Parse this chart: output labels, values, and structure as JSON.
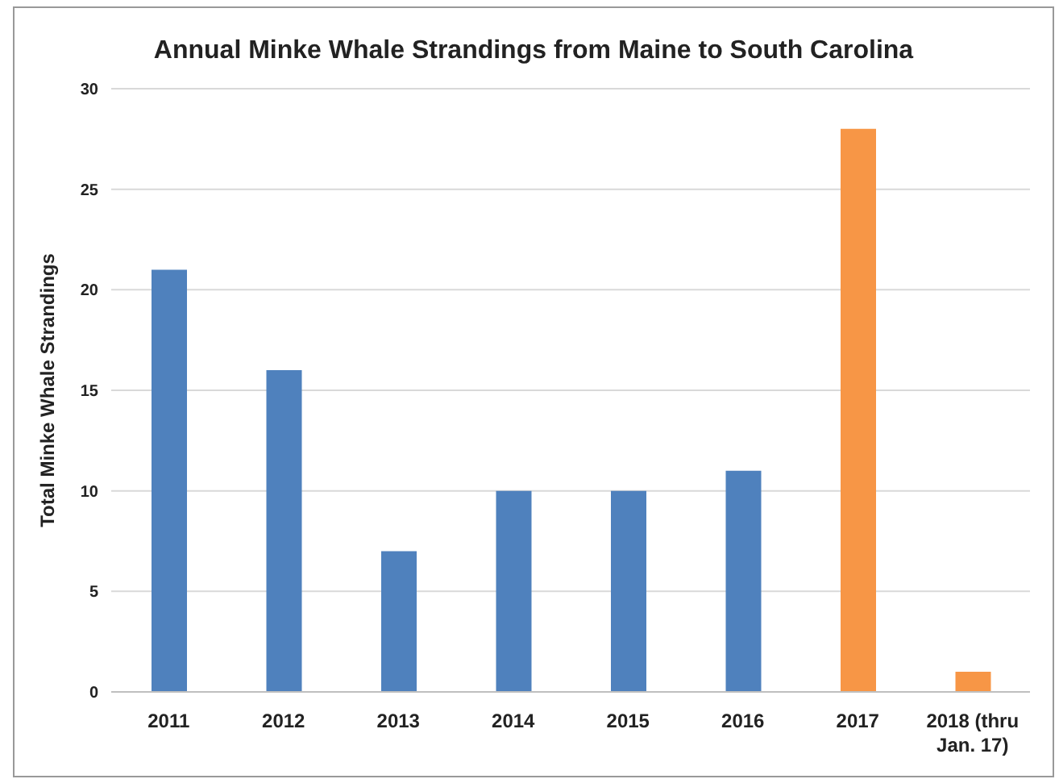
{
  "chart_data": {
    "type": "bar",
    "title": "Annual Minke Whale Strandings from Maine to South Carolina",
    "ylabel": "Total Minke Whale Strandings",
    "categories": [
      "2011",
      "2012",
      "2013",
      "2014",
      "2015",
      "2016",
      "2017",
      "2018 (thru Jan. 17)"
    ],
    "values": [
      21,
      16,
      7,
      10,
      10,
      11,
      28,
      1
    ],
    "colors": [
      "#4f81bd",
      "#4f81bd",
      "#4f81bd",
      "#4f81bd",
      "#4f81bd",
      "#4f81bd",
      "#f79646",
      "#f79646"
    ],
    "ylim": [
      0,
      30
    ],
    "yticks": [
      0,
      5,
      10,
      15,
      20,
      25,
      30
    ],
    "grid": "y",
    "legend": false
  }
}
